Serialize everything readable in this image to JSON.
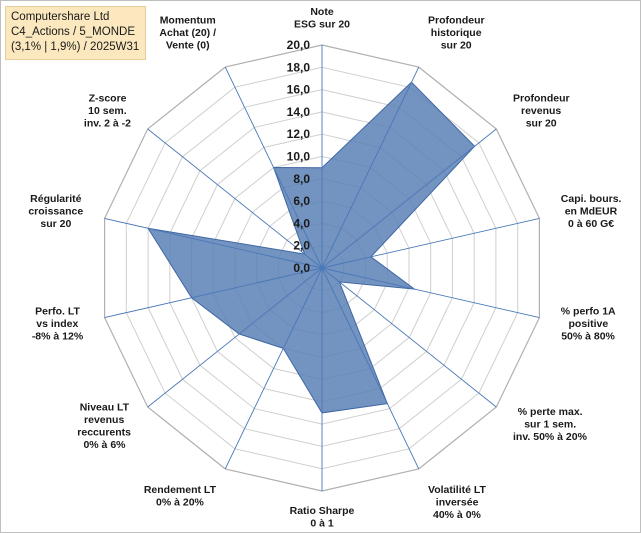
{
  "header": {
    "line1": "Computershare Ltd",
    "line2": "C4_Actions / 5_MONDE",
    "line3": "(3,1% | 1,9%) / 2025W31"
  },
  "chart_data": {
    "type": "radar",
    "axes": [
      [
        "Note",
        "ESG sur 20"
      ],
      [
        "Profondeur",
        "historique",
        "sur 20"
      ],
      [
        "Profondeur",
        "revenus",
        "sur 20"
      ],
      [
        "Capi. bours.",
        "en MdEUR",
        "0 à 60 G€"
      ],
      [
        "% perfo 1A",
        "positive",
        "50% à 80%"
      ],
      [
        "% perte max.",
        "sur 1 sem.",
        "inv. 50% à 20%"
      ],
      [
        "Volatilité LT",
        "inversée",
        "40% à 0%"
      ],
      [
        "Ratio Sharpe",
        "0 à 1"
      ],
      [
        "Rendement LT",
        "0% à 20%"
      ],
      [
        "Niveau LT",
        "revenus",
        "reccurents",
        "0% à 6%"
      ],
      [
        "Perfo. LT",
        "vs index",
        "-8% à 12%"
      ],
      [
        "Régularité",
        "croissance",
        "sur 20"
      ],
      [
        "Z-score",
        "10 sem.",
        "inv. 2 à -2"
      ],
      [
        "Momentum",
        "Achat (20) /",
        "Vente (0)"
      ]
    ],
    "values": [
      9,
      18.5,
      17.5,
      4.5,
      8.5,
      2,
      13.5,
      13,
      8,
      9.5,
      12,
      16,
      2,
      10
    ],
    "ylim": [
      0,
      20
    ],
    "ticks": [
      "0,0",
      "2,0",
      "4,0",
      "6,0",
      "8,0",
      "10,0",
      "12,0",
      "14,0",
      "16,0",
      "18,0",
      "20,0"
    ],
    "series_color": "#5b80b5",
    "grid": true
  }
}
